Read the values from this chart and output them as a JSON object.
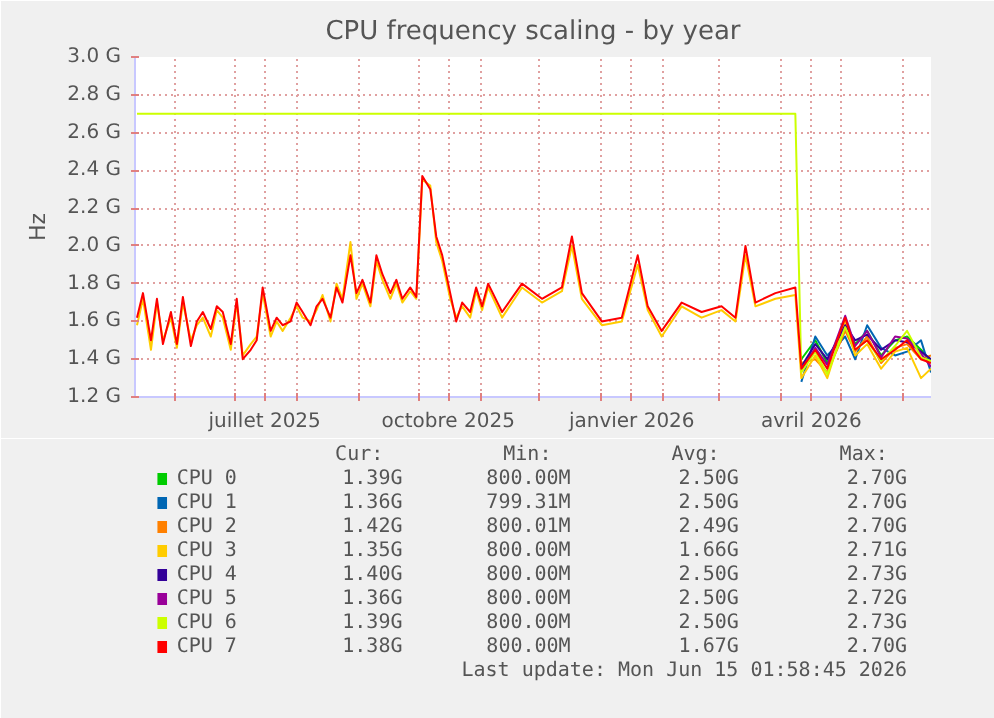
{
  "chart_data": {
    "type": "line",
    "title": "CPU frequency scaling - by year",
    "ylabel": "Hz",
    "x": [
      "2025-05-13",
      "2025-05-16",
      "2025-05-20",
      "2025-05-23",
      "2025-05-26",
      "2025-05-30",
      "2025-06-02",
      "2025-06-05",
      "2025-06-09",
      "2025-06-12",
      "2025-06-15",
      "2025-06-19",
      "2025-06-22",
      "2025-06-25",
      "2025-06-29",
      "2025-07-02",
      "2025-07-05",
      "2025-07-09",
      "2025-07-12",
      "2025-07-15",
      "2025-07-19",
      "2025-07-22",
      "2025-07-25",
      "2025-07-29",
      "2025-08-01",
      "2025-08-04",
      "2025-08-08",
      "2025-08-11",
      "2025-08-14",
      "2025-08-18",
      "2025-08-21",
      "2025-08-24",
      "2025-08-28",
      "2025-08-31",
      "2025-09-03",
      "2025-09-07",
      "2025-09-10",
      "2025-09-13",
      "2025-09-17",
      "2025-09-20",
      "2025-09-23",
      "2025-09-27",
      "2025-09-30",
      "2025-10-03",
      "2025-10-07",
      "2025-10-10",
      "2025-10-13",
      "2025-10-17",
      "2025-10-20",
      "2025-10-23",
      "2025-10-27",
      "2025-10-30",
      "2025-11-02",
      "2025-11-05",
      "2025-11-12",
      "2025-11-22",
      "2025-12-02",
      "2025-12-12",
      "2025-12-17",
      "2025-12-22",
      "2026-01-01",
      "2026-01-11",
      "2026-01-19",
      "2026-01-24",
      "2026-01-31",
      "2026-02-10",
      "2026-02-20",
      "2026-03-02",
      "2026-03-09",
      "2026-03-14",
      "2026-03-19",
      "2026-03-29",
      "2026-04-08",
      "2026-04-11",
      "2026-04-18",
      "2026-04-24",
      "2026-05-03",
      "2026-05-08",
      "2026-05-14",
      "2026-05-21",
      "2026-05-28",
      "2026-06-03",
      "2026-06-10",
      "2026-06-15"
    ],
    "series": [
      {
        "name": "CPU 0",
        "color": "#00cc00",
        "x": [
          "2026-04-11",
          "2026-04-18",
          "2026-04-24",
          "2026-05-03",
          "2026-05-08",
          "2026-05-14",
          "2026-05-21",
          "2026-05-28",
          "2026-06-03",
          "2026-06-10",
          "2026-06-15"
        ],
        "values": [
          1.4,
          1.5,
          1.38,
          1.6,
          1.48,
          1.55,
          1.42,
          1.5,
          1.52,
          1.45,
          1.39
        ]
      },
      {
        "name": "CPU 1",
        "color": "#0066b3",
        "x": [
          "2026-04-11",
          "2026-04-18",
          "2026-04-24",
          "2026-05-03",
          "2026-05-08",
          "2026-05-14",
          "2026-05-21",
          "2026-05-28",
          "2026-06-03",
          "2026-06-10",
          "2026-06-15"
        ],
        "values": [
          1.28,
          1.52,
          1.42,
          1.52,
          1.4,
          1.58,
          1.46,
          1.42,
          1.44,
          1.5,
          1.33
        ]
      },
      {
        "name": "CPU 2",
        "color": "#ff8000",
        "x": [
          "2026-04-11",
          "2026-04-18",
          "2026-04-24",
          "2026-05-03",
          "2026-05-08",
          "2026-05-14",
          "2026-05-21",
          "2026-05-28",
          "2026-06-03",
          "2026-06-10",
          "2026-06-15"
        ],
        "values": [
          1.38,
          1.4,
          1.33,
          1.55,
          1.44,
          1.52,
          1.38,
          1.46,
          1.48,
          1.4,
          1.42
        ]
      },
      {
        "name": "CPU 3",
        "color": "#ffcc00",
        "values": [
          1.58,
          1.72,
          1.45,
          1.7,
          1.5,
          1.62,
          1.46,
          1.7,
          1.5,
          1.58,
          1.62,
          1.52,
          1.66,
          1.62,
          1.45,
          1.7,
          1.42,
          1.48,
          1.52,
          1.75,
          1.52,
          1.6,
          1.55,
          1.62,
          1.68,
          1.62,
          1.6,
          1.66,
          1.74,
          1.6,
          1.8,
          1.72,
          2.02,
          1.72,
          1.8,
          1.68,
          1.92,
          1.82,
          1.72,
          1.8,
          1.7,
          1.76,
          1.72,
          2.35,
          2.32,
          2.02,
          1.92,
          1.72,
          1.62,
          1.68,
          1.62,
          1.76,
          1.66,
          1.78,
          1.62,
          1.78,
          1.7,
          1.76,
          2.0,
          1.72,
          1.58,
          1.6,
          1.9,
          1.66,
          1.52,
          1.68,
          1.62,
          1.66,
          1.6,
          1.95,
          1.68,
          1.72,
          1.74,
          1.3,
          1.42,
          1.3,
          1.6,
          1.42,
          1.48,
          1.35,
          1.44,
          1.46,
          1.3,
          1.35
        ]
      },
      {
        "name": "CPU 4",
        "color": "#330099",
        "x": [
          "2026-04-11",
          "2026-04-18",
          "2026-04-24",
          "2026-05-03",
          "2026-05-08",
          "2026-05-14",
          "2026-05-21",
          "2026-05-28",
          "2026-06-03",
          "2026-06-10",
          "2026-06-15"
        ],
        "values": [
          1.36,
          1.48,
          1.4,
          1.58,
          1.5,
          1.53,
          1.45,
          1.5,
          1.49,
          1.44,
          1.4
        ]
      },
      {
        "name": "CPU 5",
        "color": "#990099",
        "x": [
          "2026-04-11",
          "2026-04-18",
          "2026-04-24",
          "2026-05-03",
          "2026-05-08",
          "2026-05-14",
          "2026-05-21",
          "2026-05-28",
          "2026-06-03",
          "2026-06-10",
          "2026-06-15"
        ],
        "values": [
          1.34,
          1.46,
          1.37,
          1.63,
          1.47,
          1.55,
          1.41,
          1.52,
          1.51,
          1.43,
          1.36
        ]
      },
      {
        "name": "CPU 6",
        "color": "#ccff00",
        "x": [
          "2025-05-13",
          "2026-04-08",
          "2026-04-11",
          "2026-04-18",
          "2026-04-24",
          "2026-05-03",
          "2026-05-08",
          "2026-05-14",
          "2026-05-21",
          "2026-05-28",
          "2026-06-03",
          "2026-06-10",
          "2026-06-15"
        ],
        "values": [
          2.7,
          2.7,
          1.33,
          1.44,
          1.32,
          1.57,
          1.45,
          1.5,
          1.39,
          1.47,
          1.55,
          1.41,
          1.39
        ]
      },
      {
        "name": "CPU 7",
        "color": "#ff0000",
        "values": [
          1.62,
          1.75,
          1.5,
          1.72,
          1.48,
          1.65,
          1.48,
          1.73,
          1.47,
          1.6,
          1.65,
          1.56,
          1.68,
          1.65,
          1.48,
          1.72,
          1.4,
          1.45,
          1.5,
          1.78,
          1.55,
          1.62,
          1.58,
          1.6,
          1.7,
          1.65,
          1.58,
          1.68,
          1.72,
          1.62,
          1.78,
          1.7,
          1.95,
          1.75,
          1.82,
          1.7,
          1.95,
          1.85,
          1.75,
          1.82,
          1.72,
          1.78,
          1.73,
          2.37,
          2.3,
          2.05,
          1.95,
          1.75,
          1.6,
          1.7,
          1.65,
          1.78,
          1.68,
          1.8,
          1.65,
          1.8,
          1.72,
          1.78,
          2.05,
          1.75,
          1.6,
          1.62,
          1.95,
          1.68,
          1.55,
          1.7,
          1.65,
          1.68,
          1.62,
          2.0,
          1.7,
          1.75,
          1.78,
          1.35,
          1.45,
          1.35,
          1.62,
          1.45,
          1.5,
          1.4,
          1.45,
          1.5,
          1.4,
          1.38
        ]
      }
    ],
    "xlim": [
      "2025-05-12",
      "2026-06-15"
    ],
    "xticks": [
      {
        "value": "2025-06-01",
        "label": null
      },
      {
        "value": "2025-07-01",
        "label": null
      },
      {
        "value": "2025-07-16",
        "label": "juillet 2025"
      },
      {
        "value": "2025-08-01",
        "label": null
      },
      {
        "value": "2025-09-01",
        "label": null
      },
      {
        "value": "2025-10-01",
        "label": null
      },
      {
        "value": "2025-10-16",
        "label": "octobre 2025"
      },
      {
        "value": "2025-11-01",
        "label": null
      },
      {
        "value": "2025-12-01",
        "label": null
      },
      {
        "value": "2026-01-01",
        "label": null
      },
      {
        "value": "2026-01-16",
        "label": "janvier 2026"
      },
      {
        "value": "2026-02-01",
        "label": null
      },
      {
        "value": "2026-03-01",
        "label": null
      },
      {
        "value": "2026-04-01",
        "label": null
      },
      {
        "value": "2026-04-16",
        "label": "avril 2026"
      },
      {
        "value": "2026-05-01",
        "label": null
      },
      {
        "value": "2026-06-01",
        "label": null
      }
    ],
    "ylim": [
      1.2,
      3.0
    ],
    "yticks": [
      {
        "value": 1.2,
        "label": "1.2 G"
      },
      {
        "value": 1.4,
        "label": "1.4 G"
      },
      {
        "value": 1.6,
        "label": "1.6 G"
      },
      {
        "value": 1.8,
        "label": "1.8 G"
      },
      {
        "value": 2.0,
        "label": "2.0 G"
      },
      {
        "value": 2.2,
        "label": "2.2 G"
      },
      {
        "value": 2.4,
        "label": "2.4 G"
      },
      {
        "value": 2.6,
        "label": "2.6 G"
      },
      {
        "value": 2.8,
        "label": "2.8 G"
      },
      {
        "value": 3.0,
        "label": "3.0 G"
      }
    ],
    "grid": true,
    "legend": "bottom",
    "annotations": [
      "Cur:",
      "Min:",
      "Avg:",
      "Max:",
      "1.39G",
      "800.00M",
      "2.50G",
      "2.70G",
      "1.36G",
      "799.31M",
      "2.50G",
      "2.70G",
      "1.42G",
      "800.01M",
      "2.49G",
      "2.70G",
      "1.35G",
      "800.00M",
      "1.66G",
      "2.71G",
      "1.40G",
      "800.00M",
      "2.50G",
      "2.73G",
      "1.36G",
      "800.00M",
      "2.50G",
      "2.72G",
      "1.39G",
      "800.00M",
      "2.50G",
      "2.73G",
      "1.38G",
      "800.00M",
      "1.67G",
      "2.70G",
      "Last update: Mon Jun 15 01:58:45 2026"
    ]
  }
}
